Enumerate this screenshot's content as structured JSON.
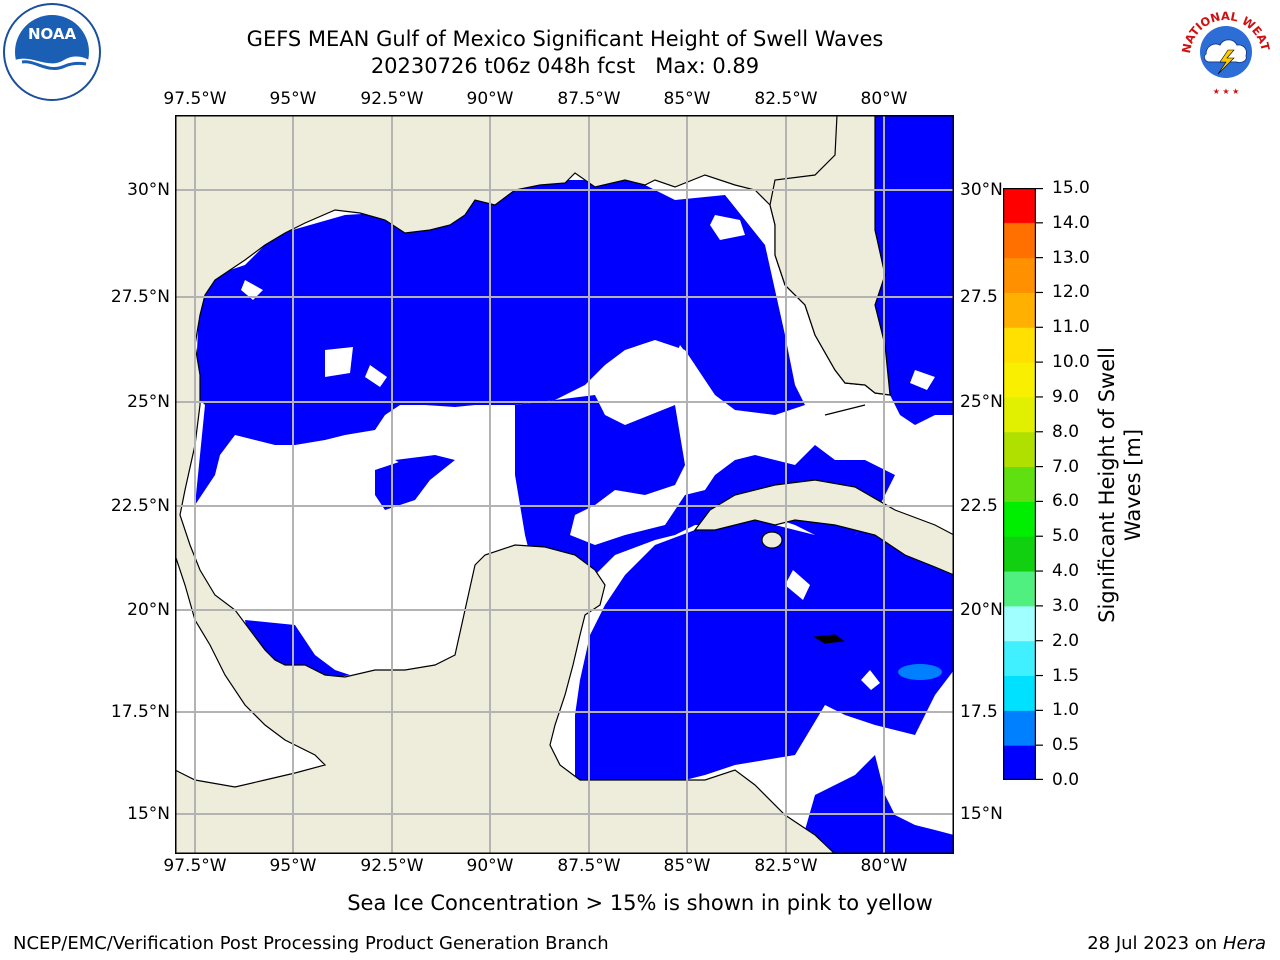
{
  "header": {
    "title_line1": "GEFS MEAN Gulf of Mexico Significant Height of Swell Waves",
    "title_line2": "20230726 t06z 048h fcst   Max: 0.89"
  },
  "logos": {
    "left": {
      "name": "NOAA",
      "ring_text": "NATIONAL OCEANIC AND ATMOSPHERIC ADMINISTRATION",
      "bottom_text": "U.S. DEPARTMENT OF COMMERCE"
    },
    "right": {
      "name": "NATIONAL WEATHER SERVICE"
    }
  },
  "map": {
    "lon_ticks": [
      "97.5°W",
      "95°W",
      "92.5°W",
      "90°W",
      "87.5°W",
      "85°W",
      "82.5°W",
      "80°W"
    ],
    "lat_ticks_left": [
      "30°N",
      "27.5°N",
      "25°N",
      "22.5°N",
      "20°N",
      "17.5°N",
      "15°N"
    ],
    "lat_ticks_right": [
      "30°N",
      "27.5",
      "25°N",
      "22.5",
      "20°N",
      "17.5",
      "15°N"
    ],
    "colors": {
      "land": "#eeeddc",
      "swell_low": "#0000ff",
      "swell_mid": "#0080ff",
      "grid": "#b3b3b3"
    }
  },
  "colorbar": {
    "label": "Significant Height of Swell Waves [m]",
    "label_line1": "Significant Height of Swell",
    "label_line2": "Waves [m]",
    "ticks": [
      "0.0",
      "0.5",
      "1.0",
      "1.5",
      "2.0",
      "3.0",
      "4.0",
      "5.0",
      "6.0",
      "7.0",
      "8.0",
      "9.0",
      "10.0",
      "11.0",
      "12.0",
      "13.0",
      "14.0",
      "15.0"
    ],
    "colors": [
      "#0000ff",
      "#0080ff",
      "#00e0ff",
      "#40f0ff",
      "#a0ffff",
      "#50f080",
      "#10d010",
      "#00ee00",
      "#60e010",
      "#b0e000",
      "#e0f000",
      "#f8f000",
      "#ffe000",
      "#ffb000",
      "#ff9000",
      "#ff7000",
      "#ff4000",
      "#ff0000"
    ]
  },
  "note": "Sea Ice Concentration > 15% is shown in pink to yellow",
  "footer": {
    "left": "NCEP/EMC/Verification Post Processing Product Generation Branch",
    "date": "28 Jul 2023 on ",
    "machine": "Hera"
  }
}
